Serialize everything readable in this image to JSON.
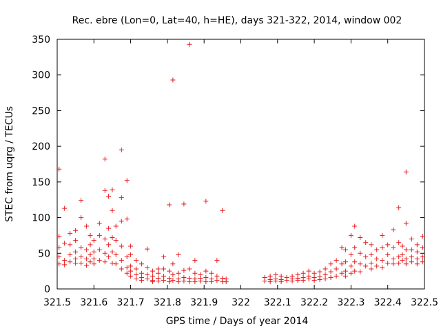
{
  "chart_data": {
    "type": "scatter",
    "title": "Rec. ebre (Lon=0, Lat=40, h=HE), days 321-322, 2014, window 002",
    "xlabel": "GPS time / Days of year 2014",
    "ylabel": "STEC from uqrg / TECUs",
    "xlim": [
      321.5,
      322.5
    ],
    "ylim": [
      0,
      350
    ],
    "x_ticks": [
      "321.5",
      "321.6",
      "321.7",
      "321.8",
      "321.9",
      "322",
      "322.1",
      "322.2",
      "322.3",
      "322.4",
      "322.5"
    ],
    "y_ticks": [
      "0",
      "50",
      "100",
      "150",
      "200",
      "250",
      "300",
      "350"
    ],
    "grid": false,
    "marker": "+",
    "color": "#e41a1c",
    "points": [
      [
        321.505,
        168
      ],
      [
        321.505,
        74
      ],
      [
        321.505,
        58
      ],
      [
        321.505,
        45
      ],
      [
        321.505,
        35
      ],
      [
        321.52,
        113
      ],
      [
        321.52,
        64
      ],
      [
        321.52,
        40
      ],
      [
        321.52,
        34
      ],
      [
        321.535,
        78
      ],
      [
        321.535,
        62
      ],
      [
        321.535,
        48
      ],
      [
        321.535,
        38
      ],
      [
        321.55,
        82
      ],
      [
        321.55,
        68
      ],
      [
        321.55,
        52
      ],
      [
        321.55,
        42
      ],
      [
        321.55,
        36
      ],
      [
        321.565,
        124
      ],
      [
        321.565,
        100
      ],
      [
        321.565,
        58
      ],
      [
        321.565,
        45
      ],
      [
        321.565,
        36
      ],
      [
        321.58,
        88
      ],
      [
        321.58,
        55
      ],
      [
        321.58,
        42
      ],
      [
        321.58,
        33
      ],
      [
        321.59,
        75
      ],
      [
        321.59,
        62
      ],
      [
        321.59,
        48
      ],
      [
        321.59,
        38
      ],
      [
        321.6,
        68
      ],
      [
        321.6,
        52
      ],
      [
        321.6,
        42
      ],
      [
        321.6,
        35
      ],
      [
        321.615,
        92
      ],
      [
        321.615,
        75
      ],
      [
        321.615,
        55
      ],
      [
        321.615,
        40
      ],
      [
        321.63,
        182
      ],
      [
        321.63,
        138
      ],
      [
        321.63,
        70
      ],
      [
        321.63,
        50
      ],
      [
        321.63,
        38
      ],
      [
        321.64,
        130
      ],
      [
        321.64,
        85
      ],
      [
        321.64,
        62
      ],
      [
        321.64,
        45
      ],
      [
        321.65,
        139
      ],
      [
        321.65,
        110
      ],
      [
        321.65,
        72
      ],
      [
        321.65,
        52
      ],
      [
        321.65,
        36
      ],
      [
        321.66,
        88
      ],
      [
        321.66,
        68
      ],
      [
        321.66,
        48
      ],
      [
        321.66,
        35
      ],
      [
        321.675,
        195
      ],
      [
        321.675,
        128
      ],
      [
        321.675,
        95
      ],
      [
        321.675,
        60
      ],
      [
        321.675,
        40
      ],
      [
        321.675,
        28
      ],
      [
        321.69,
        152
      ],
      [
        321.69,
        98
      ],
      [
        321.69,
        45
      ],
      [
        321.69,
        30
      ],
      [
        321.69,
        22
      ],
      [
        321.7,
        60
      ],
      [
        321.7,
        48
      ],
      [
        321.7,
        32
      ],
      [
        321.7,
        25
      ],
      [
        321.7,
        18
      ],
      [
        321.715,
        40
      ],
      [
        321.715,
        28
      ],
      [
        321.715,
        20
      ],
      [
        321.715,
        14
      ],
      [
        321.73,
        35
      ],
      [
        321.73,
        22
      ],
      [
        321.73,
        16
      ],
      [
        321.73,
        12
      ],
      [
        321.745,
        56
      ],
      [
        321.745,
        30
      ],
      [
        321.745,
        20
      ],
      [
        321.745,
        14
      ],
      [
        321.76,
        25
      ],
      [
        321.76,
        18
      ],
      [
        321.76,
        12
      ],
      [
        321.76,
        10
      ],
      [
        321.775,
        28
      ],
      [
        321.775,
        22
      ],
      [
        321.775,
        15
      ],
      [
        321.775,
        11
      ],
      [
        321.79,
        45
      ],
      [
        321.79,
        28
      ],
      [
        321.79,
        18
      ],
      [
        321.79,
        12
      ],
      [
        321.805,
        118
      ],
      [
        321.805,
        25
      ],
      [
        321.805,
        15
      ],
      [
        321.805,
        10
      ],
      [
        321.815,
        293
      ],
      [
        321.815,
        35
      ],
      [
        321.815,
        20
      ],
      [
        321.815,
        12
      ],
      [
        321.83,
        48
      ],
      [
        321.83,
        22
      ],
      [
        321.83,
        14
      ],
      [
        321.83,
        10
      ],
      [
        321.845,
        119
      ],
      [
        321.845,
        26
      ],
      [
        321.845,
        16
      ],
      [
        321.845,
        11
      ],
      [
        321.86,
        343
      ],
      [
        321.86,
        28
      ],
      [
        321.86,
        15
      ],
      [
        321.86,
        10
      ],
      [
        321.875,
        40
      ],
      [
        321.875,
        22
      ],
      [
        321.875,
        14
      ],
      [
        321.875,
        10
      ],
      [
        321.89,
        20
      ],
      [
        321.89,
        15
      ],
      [
        321.89,
        11
      ],
      [
        321.905,
        123
      ],
      [
        321.905,
        25
      ],
      [
        321.905,
        16
      ],
      [
        321.905,
        10
      ],
      [
        321.92,
        22
      ],
      [
        321.92,
        14
      ],
      [
        321.92,
        10
      ],
      [
        321.935,
        40
      ],
      [
        321.935,
        18
      ],
      [
        321.935,
        12
      ],
      [
        321.95,
        110
      ],
      [
        321.95,
        15
      ],
      [
        321.95,
        10
      ],
      [
        321.96,
        14
      ],
      [
        321.96,
        10
      ],
      [
        322.065,
        16
      ],
      [
        322.065,
        11
      ],
      [
        322.08,
        18
      ],
      [
        322.08,
        13
      ],
      [
        322.08,
        10
      ],
      [
        322.095,
        20
      ],
      [
        322.095,
        14
      ],
      [
        322.095,
        11
      ],
      [
        322.11,
        18
      ],
      [
        322.11,
        13
      ],
      [
        322.11,
        10
      ],
      [
        322.125,
        16
      ],
      [
        322.125,
        12
      ],
      [
        322.14,
        18
      ],
      [
        322.14,
        14
      ],
      [
        322.14,
        11
      ],
      [
        322.155,
        20
      ],
      [
        322.155,
        15
      ],
      [
        322.155,
        12
      ],
      [
        322.17,
        22
      ],
      [
        322.17,
        16
      ],
      [
        322.17,
        12
      ],
      [
        322.185,
        25
      ],
      [
        322.185,
        18
      ],
      [
        322.185,
        14
      ],
      [
        322.2,
        22
      ],
      [
        322.2,
        16
      ],
      [
        322.2,
        12
      ],
      [
        322.215,
        24
      ],
      [
        322.215,
        17
      ],
      [
        322.215,
        13
      ],
      [
        322.23,
        28
      ],
      [
        322.23,
        20
      ],
      [
        322.23,
        14
      ],
      [
        322.245,
        35
      ],
      [
        322.245,
        24
      ],
      [
        322.245,
        16
      ],
      [
        322.26,
        40
      ],
      [
        322.26,
        28
      ],
      [
        322.26,
        18
      ],
      [
        322.275,
        58
      ],
      [
        322.275,
        35
      ],
      [
        322.275,
        22
      ],
      [
        322.285,
        55
      ],
      [
        322.285,
        38
      ],
      [
        322.285,
        25
      ],
      [
        322.285,
        18
      ],
      [
        322.3,
        75
      ],
      [
        322.3,
        48
      ],
      [
        322.3,
        32
      ],
      [
        322.3,
        22
      ],
      [
        322.31,
        88
      ],
      [
        322.31,
        58
      ],
      [
        322.31,
        38
      ],
      [
        322.31,
        25
      ],
      [
        322.325,
        72
      ],
      [
        322.325,
        50
      ],
      [
        322.325,
        35
      ],
      [
        322.325,
        24
      ],
      [
        322.34,
        65
      ],
      [
        322.34,
        45
      ],
      [
        322.34,
        32
      ],
      [
        322.355,
        62
      ],
      [
        322.355,
        48
      ],
      [
        322.355,
        36
      ],
      [
        322.355,
        28
      ],
      [
        322.37,
        55
      ],
      [
        322.37,
        42
      ],
      [
        322.37,
        32
      ],
      [
        322.385,
        75
      ],
      [
        322.385,
        58
      ],
      [
        322.385,
        40
      ],
      [
        322.385,
        30
      ],
      [
        322.4,
        62
      ],
      [
        322.4,
        48
      ],
      [
        322.4,
        36
      ],
      [
        322.415,
        83
      ],
      [
        322.415,
        58
      ],
      [
        322.415,
        42
      ],
      [
        322.415,
        35
      ],
      [
        322.43,
        114
      ],
      [
        322.43,
        65
      ],
      [
        322.43,
        45
      ],
      [
        322.43,
        36
      ],
      [
        322.44,
        60
      ],
      [
        322.44,
        48
      ],
      [
        322.44,
        40
      ],
      [
        322.45,
        164
      ],
      [
        322.45,
        92
      ],
      [
        322.45,
        55
      ],
      [
        322.45,
        42
      ],
      [
        322.45,
        35
      ],
      [
        322.465,
        70
      ],
      [
        322.465,
        55
      ],
      [
        322.465,
        45
      ],
      [
        322.465,
        38
      ],
      [
        322.48,
        62
      ],
      [
        322.48,
        52
      ],
      [
        322.48,
        42
      ],
      [
        322.48,
        35
      ],
      [
        322.495,
        74
      ],
      [
        322.495,
        58
      ],
      [
        322.495,
        45
      ],
      [
        322.495,
        38
      ]
    ]
  }
}
